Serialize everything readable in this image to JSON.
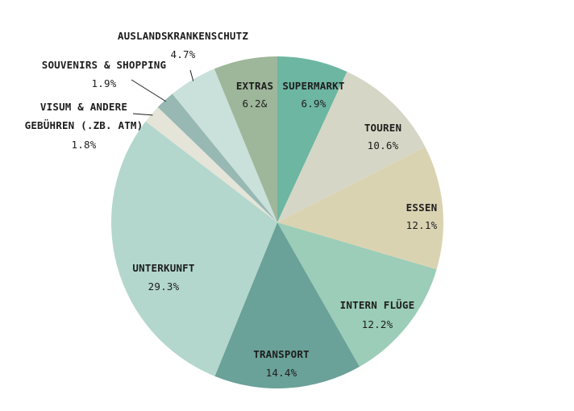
{
  "chart_data": {
    "type": "pie",
    "slices": [
      {
        "label": "SUPERMARKT",
        "value_text": "6.9%",
        "value": 6.9,
        "color": "#6db6a1"
      },
      {
        "label": "TOUREN",
        "value_text": "10.6%",
        "value": 10.6,
        "color": "#d6d6c6"
      },
      {
        "label": "ESSEN",
        "value_text": "12.1%",
        "value": 12.1,
        "color": "#dad3b2"
      },
      {
        "label": "INTERN FLÜGE",
        "value_text": "12.2%",
        "value": 12.2,
        "color": "#9bcdb8"
      },
      {
        "label": "TRANSPORT",
        "value_text": "14.4%",
        "value": 14.4,
        "color": "#6aa198"
      },
      {
        "label": "UNTERKUNFT",
        "value_text": "29.3%",
        "value": 29.3,
        "color": "#b3d7cd"
      },
      {
        "label": "VISUM & ANDERE GEBÜHREN (.ZB. ATM)",
        "value_text": "1.8%",
        "value": 1.8,
        "color": "#e4e4d8"
      },
      {
        "label": "SOUVENIRS & SHOPPING",
        "value_text": "1.9%",
        "value": 1.9,
        "color": "#97b8b3"
      },
      {
        "label": "AUSLANDSKRANKENSCHUTZ",
        "value_text": "4.7%",
        "value": 4.7,
        "color": "#c9e1da"
      },
      {
        "label": "EXTRAS",
        "value_text": "6.2&",
        "value": 6.2,
        "color": "#9eb69a"
      }
    ]
  }
}
